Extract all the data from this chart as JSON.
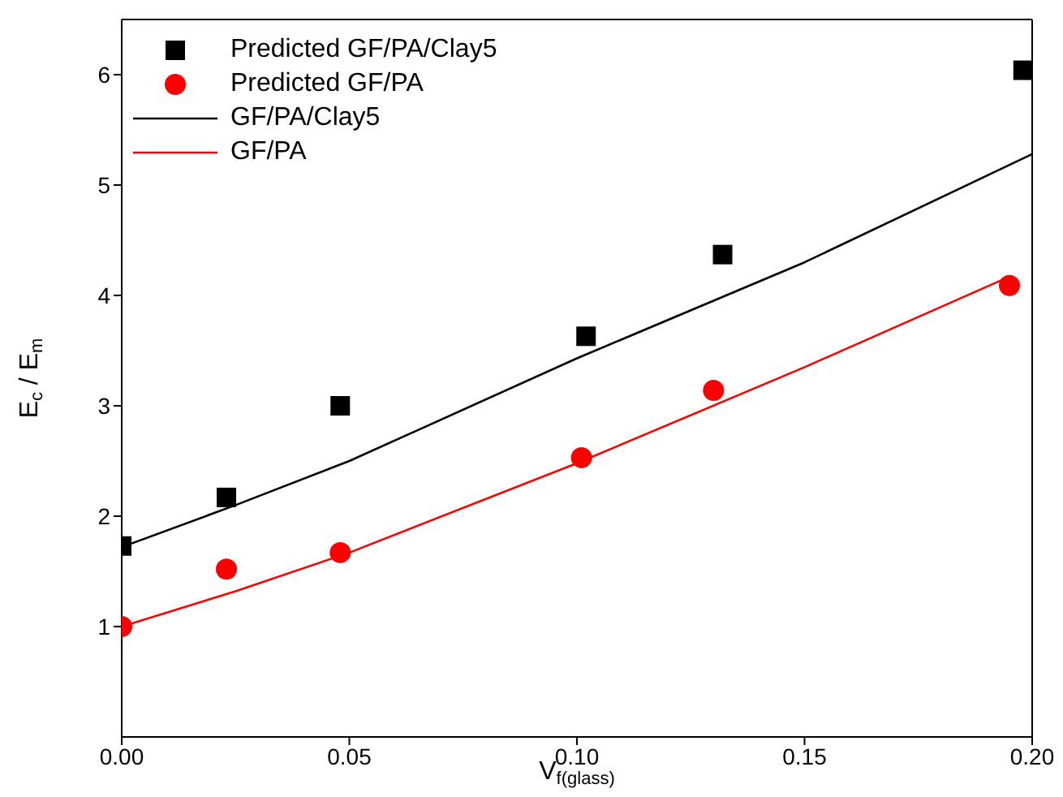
{
  "chart_data": {
    "type": "scatter",
    "xlabel": "V$_{f(glass)}$",
    "ylabel": "E$_{c}$ / E$_{m}$",
    "xlim": [
      0,
      0.2
    ],
    "ylim": [
      0,
      6.5
    ],
    "xticks": [
      {
        "value": 0,
        "label": "0.00"
      },
      {
        "value": 0.05,
        "label": "0.05"
      },
      {
        "value": 0.1,
        "label": "0.10"
      },
      {
        "value": 0.15,
        "label": "0.15"
      },
      {
        "value": 0.2,
        "label": "0.20"
      }
    ],
    "yticks": [
      1,
      2,
      3,
      4,
      5,
      6
    ],
    "legend": "top left",
    "series": [
      {
        "name": "Predicted GF/PA/Clay5",
        "marker": "square",
        "color": "#000000",
        "x": [
          0,
          0.023,
          0.048,
          0.102,
          0.132,
          0.198
        ],
        "values": [
          1.73,
          2.17,
          3.0,
          3.63,
          4.37,
          6.04
        ]
      },
      {
        "name": "Predicted GF/PA",
        "marker": "circle",
        "color": "#ff0000",
        "x": [
          0,
          0.023,
          0.048,
          0.101,
          0.13,
          0.195
        ],
        "values": [
          1.0,
          1.52,
          1.67,
          2.53,
          3.14,
          4.09
        ]
      },
      {
        "name": "GF/PA/Clay5",
        "type": "line",
        "marker": "none",
        "line_style": "solid",
        "color": "#000000",
        "x": [
          0,
          0.025,
          0.05,
          0.1,
          0.15,
          0.2
        ],
        "values": [
          1.72,
          2.1,
          2.5,
          3.43,
          4.3,
          5.28
        ]
      },
      {
        "name": "GF/PA",
        "type": "line",
        "marker": "none",
        "line_style": "solid",
        "color": "#ff0000",
        "x": [
          0,
          0.025,
          0.05,
          0.1,
          0.15,
          0.195
        ],
        "values": [
          1.0,
          1.32,
          1.67,
          2.48,
          3.35,
          4.17
        ]
      }
    ]
  }
}
